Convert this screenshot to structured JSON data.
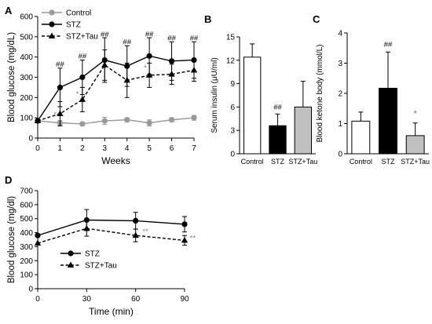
{
  "colors": {
    "control": "#999999",
    "stz": "#000000",
    "stz_tau": "#000000",
    "bar_control": "#ffffff",
    "bar_stz": "#000000",
    "bar_stz_tau": "#c0c0c0",
    "star_gray": "#7f7f7f"
  },
  "chart_data": [
    {
      "panel": "A",
      "type": "line",
      "xlabel": "Weeks",
      "ylabel": "Blood glucose (mg/dL)",
      "xlim": [
        0,
        7
      ],
      "ylim": [
        0,
        600
      ],
      "xticks": [
        0,
        1,
        2,
        3,
        4,
        5,
        6,
        7
      ],
      "yticks": [
        0,
        100,
        200,
        300,
        400,
        500,
        600
      ],
      "legend": "top-left",
      "x": [
        0,
        1,
        2,
        3,
        4,
        5,
        6,
        7
      ],
      "series": [
        {
          "name": "Control",
          "marker": "circle",
          "dash": false,
          "color": "#999999",
          "values": [
            85,
            75,
            70,
            85,
            90,
            75,
            90,
            100
          ],
          "errors": [
            5,
            12,
            8,
            18,
            10,
            15,
            10,
            12
          ]
        },
        {
          "name": "STZ",
          "marker": "circle",
          "dash": false,
          "color": "#000000",
          "values": [
            85,
            250,
            300,
            385,
            355,
            405,
            380,
            385
          ],
          "errors": [
            0,
            95,
            85,
            110,
            100,
            90,
            95,
            90
          ]
        },
        {
          "name": "STZ+Tau",
          "marker": "triangle",
          "dash": true,
          "color": "#000000",
          "values": [
            85,
            120,
            190,
            360,
            285,
            310,
            315,
            335
          ],
          "errors": [
            0,
            60,
            60,
            75,
            85,
            60,
            50,
            55
          ]
        }
      ],
      "annotations": [
        {
          "text": "##",
          "x": 1,
          "y": 352,
          "color": "#000000"
        },
        {
          "text": "##",
          "x": 2,
          "y": 392,
          "color": "#000000"
        },
        {
          "text": "##",
          "x": 3,
          "y": 500,
          "color": "#000000"
        },
        {
          "text": "##",
          "x": 4,
          "y": 462,
          "color": "#000000"
        },
        {
          "text": "##",
          "x": 5,
          "y": 502,
          "color": "#000000"
        },
        {
          "text": "##",
          "x": 6,
          "y": 482,
          "color": "#000000"
        },
        {
          "text": "##",
          "x": 7,
          "y": 482,
          "color": "#000000"
        },
        {
          "text": "*",
          "x": 0.78,
          "y": 105,
          "color": "#7f7f7f"
        },
        {
          "text": "*",
          "x": 1.78,
          "y": 205,
          "color": "#7f7f7f"
        },
        {
          "text": "*",
          "x": 4.82,
          "y": 335,
          "color": "#7f7f7f"
        }
      ]
    },
    {
      "panel": "B",
      "type": "bar",
      "ylabel": "Serum insulin (μU/ml)",
      "ylim": [
        0,
        15
      ],
      "yticks": [
        0,
        3,
        6,
        9,
        12,
        15
      ],
      "categories": [
        "Control",
        "STZ",
        "STZ+Tau"
      ],
      "values": [
        12.4,
        3.6,
        6.0
      ],
      "errors": [
        1.7,
        1.5,
        3.3
      ],
      "annotations": [
        {
          "text": "##",
          "category": "STZ",
          "y": 5.7,
          "color": "#000000"
        }
      ]
    },
    {
      "panel": "C",
      "type": "bar",
      "ylabel": "Blood ketone body (mmol/L)",
      "ylim": [
        0,
        4
      ],
      "yticks": [
        0,
        1,
        2,
        3,
        4
      ],
      "categories": [
        "Control",
        "STZ",
        "STZ+Tau"
      ],
      "values": [
        1.08,
        2.17,
        0.6
      ],
      "errors": [
        0.3,
        1.2,
        0.42
      ],
      "annotations": [
        {
          "text": "##",
          "category": "STZ",
          "y": 3.55,
          "color": "#000000"
        },
        {
          "text": "*",
          "category": "STZ+Tau",
          "y": 1.22,
          "color": "#7f7f7f"
        }
      ]
    },
    {
      "panel": "D",
      "type": "line",
      "xlabel": "Time (min)",
      "ylabel": "Blood glucose (mg/dl)",
      "xlim": [
        0,
        90
      ],
      "ylim": [
        0,
        700
      ],
      "xticks": [
        0,
        30,
        60,
        90
      ],
      "yticks": [
        0,
        100,
        200,
        300,
        400,
        500,
        600,
        700
      ],
      "legend": "bottom-left",
      "x": [
        0,
        30,
        60,
        90
      ],
      "series": [
        {
          "name": "STZ",
          "marker": "circle",
          "dash": false,
          "color": "#000000",
          "values": [
            380,
            490,
            485,
            460
          ],
          "errors": [
            0,
            75,
            60,
            55
          ]
        },
        {
          "name": "STZ+Tau",
          "marker": "triangle",
          "dash": true,
          "color": "#000000",
          "values": [
            325,
            430,
            380,
            345
          ],
          "errors": [
            0,
            55,
            45,
            35
          ]
        }
      ],
      "annotations": [
        {
          "text": "**",
          "x": 66,
          "y": 392,
          "color": "#7f7f7f"
        },
        {
          "text": "**",
          "x": 95,
          "y": 345,
          "color": "#7f7f7f"
        }
      ]
    }
  ]
}
